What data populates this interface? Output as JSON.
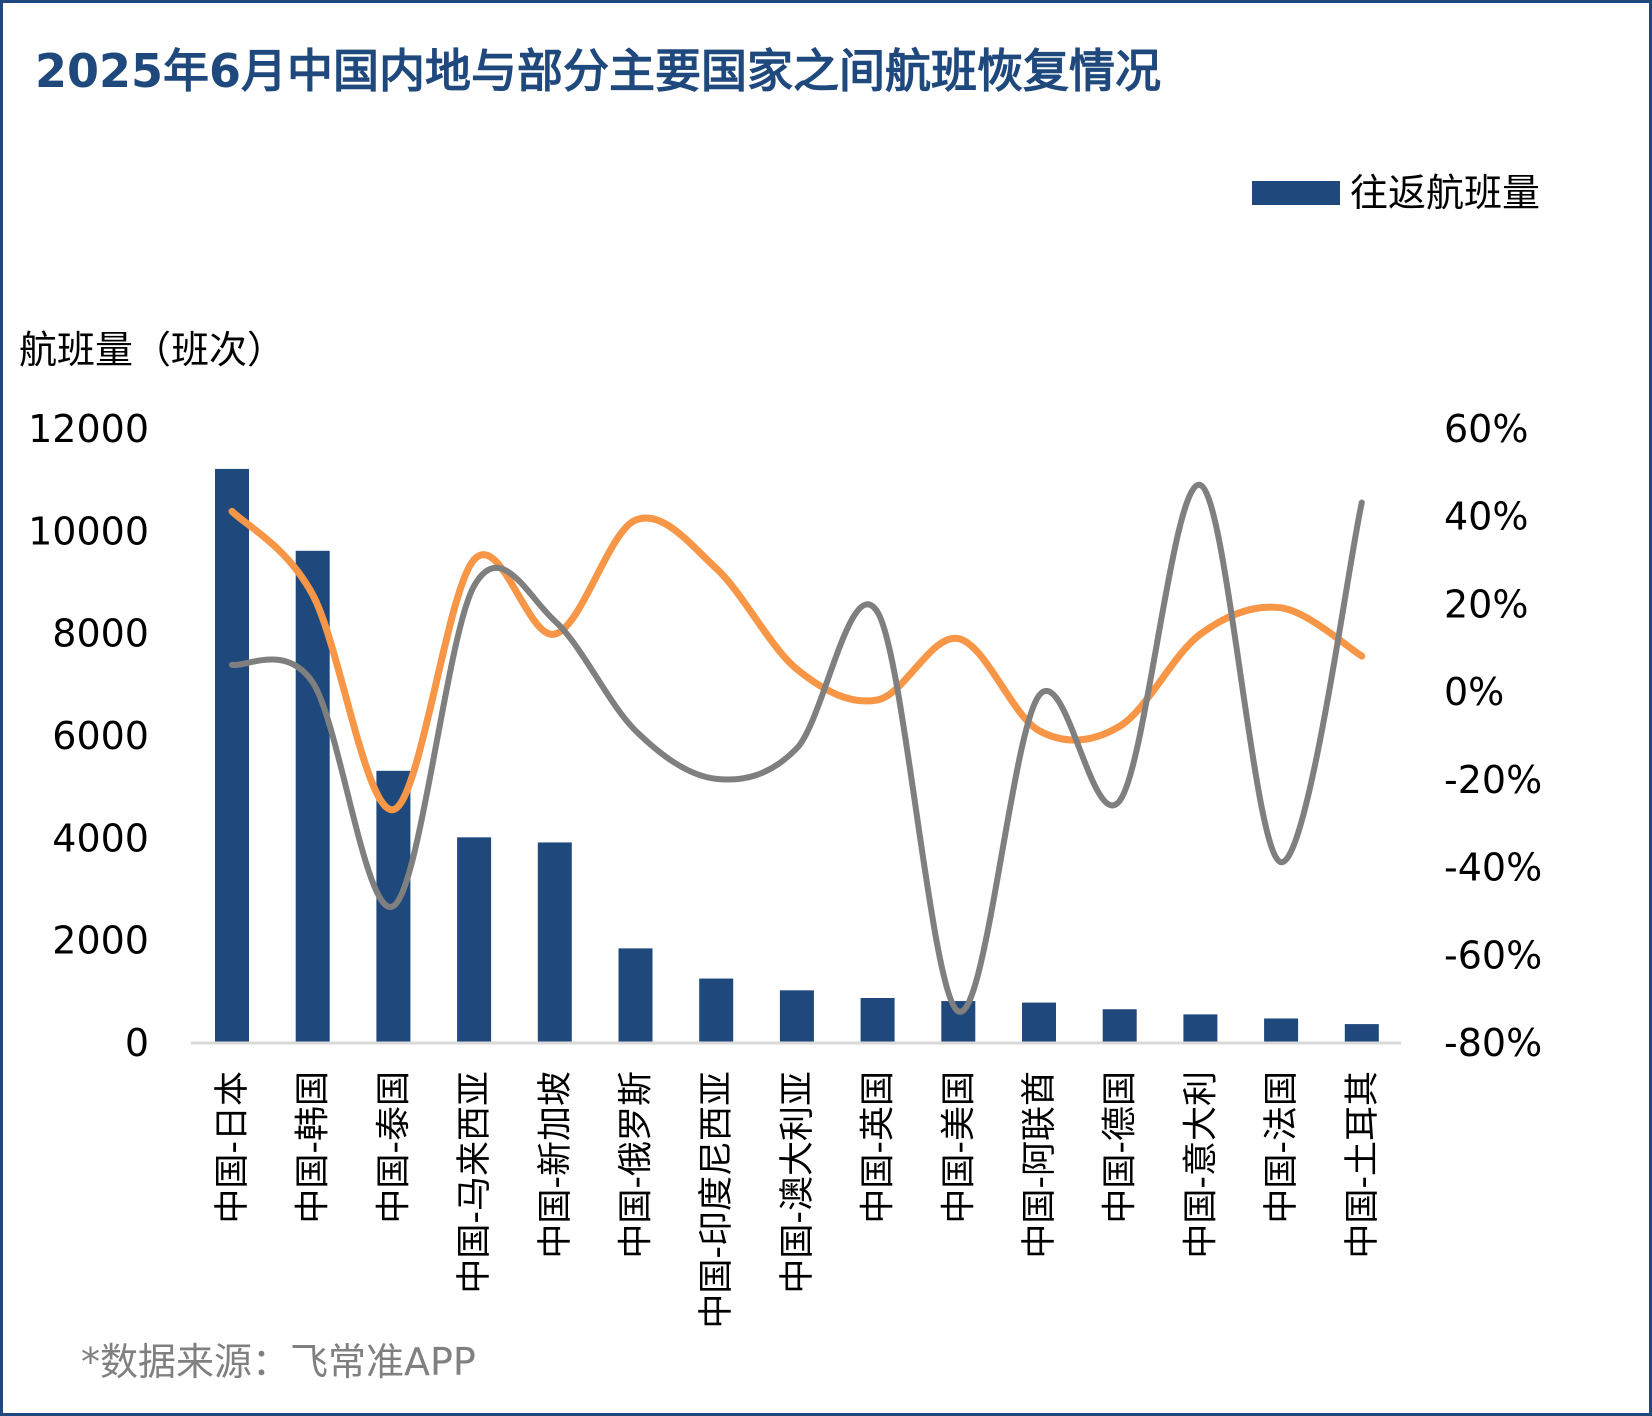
{
  "title": "2025年6月中国内地与部分主要国家之间航班恢复情况",
  "source": "*数据来源：飞常准APP",
  "colors": {
    "title": "#1F497D",
    "bar": "#1F497D",
    "line_orange": "#F79646",
    "line_gray": "#7F7F7F",
    "source": "#808080"
  },
  "chart_data": {
    "type": "bar",
    "title": "2025年6月中国内地与部分主要国家之间航班恢复情况",
    "ylabel": "航班量（班次）",
    "ylim": [
      0,
      12000
    ],
    "yticks": [
      "0",
      "2000",
      "4000",
      "6000",
      "8000",
      "10000",
      "12000"
    ],
    "y2lim": [
      -0.8,
      0.6
    ],
    "y2ticks": [
      "-80%",
      "-60%",
      "-40%",
      "-20%",
      "0%",
      "20%",
      "40%",
      "60%"
    ],
    "grid": false,
    "legend": {
      "position": "top-right",
      "entries": [
        "往返航班量"
      ]
    },
    "categories": [
      "中国-日本",
      "中国-韩国",
      "中国-泰国",
      "中国-马来西亚",
      "中国-新加坡",
      "中国-俄罗斯",
      "中国-印度尼西亚",
      "中国-澳大利亚",
      "中国-英国",
      "中国-美国",
      "中国-阿联酋",
      "中国-德国",
      "中国-意大利",
      "中国-法国",
      "中国-土耳其"
    ],
    "series": [
      {
        "name": "往返航班量",
        "type": "bar",
        "axis": "left",
        "color": "#1F497D",
        "values": [
          11200,
          9600,
          5300,
          4000,
          3900,
          1830,
          1240,
          1010,
          860,
          800,
          770,
          640,
          540,
          460,
          350
        ]
      },
      {
        "type": "line",
        "axis": "right",
        "color": "#F79646",
        "smooth": true,
        "values": [
          0.41,
          0.22,
          -0.27,
          0.3,
          0.13,
          0.39,
          0.28,
          0.05,
          -0.02,
          0.12,
          -0.09,
          -0.08,
          0.13,
          0.19,
          0.08
        ]
      },
      {
        "type": "line",
        "axis": "right",
        "color": "#7F7F7F",
        "smooth": true,
        "values": [
          0.06,
          0.02,
          -0.49,
          0.24,
          0.16,
          -0.09,
          -0.2,
          -0.13,
          0.18,
          -0.73,
          -0.01,
          -0.25,
          0.47,
          -0.39,
          0.43
        ]
      }
    ]
  }
}
